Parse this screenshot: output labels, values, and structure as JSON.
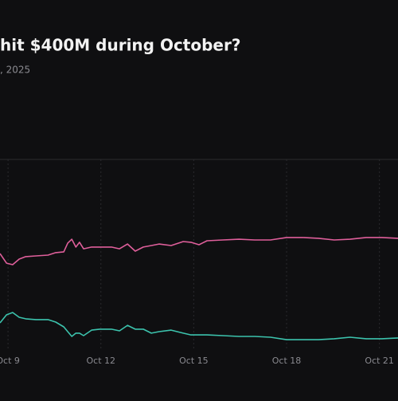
{
  "chart_data": {
    "type": "line",
    "title": "hit $400M during October?",
    "subtitle": ", 2025",
    "x": [
      8.74,
      8.95,
      9.15,
      9.36,
      9.57,
      9.9,
      10.29,
      10.54,
      10.8,
      10.93,
      11.06,
      11.19,
      11.31,
      11.44,
      11.7,
      11.96,
      12.34,
      12.6,
      12.86,
      13.11,
      13.37,
      13.63,
      13.88,
      14.27,
      14.66,
      14.91,
      15.17,
      15.43,
      15.94,
      16.46,
      16.97,
      17.48,
      18.0,
      18.51,
      19.03,
      19.54,
      20.05,
      20.57,
      21.08,
      21.6
    ],
    "series": [
      {
        "color": "#df5f9b",
        "values": [
          50.8,
          45.8,
          45.0,
          47.9,
          49.2,
          49.6,
          50.0,
          51.3,
          51.7,
          56.3,
          58.3,
          54.2,
          56.7,
          53.3,
          54.2,
          54.2,
          54.2,
          53.3,
          55.8,
          52.1,
          54.2,
          55.0,
          55.8,
          55.0,
          57.1,
          56.7,
          55.4,
          57.5,
          57.9,
          58.3,
          57.9,
          57.9,
          59.2,
          59.2,
          58.8,
          57.9,
          58.3,
          59.2,
          59.2,
          58.8
        ]
      },
      {
        "color": "#3cc3ad",
        "values": [
          14.6,
          18.8,
          20.0,
          17.5,
          16.7,
          16.3,
          16.3,
          15.0,
          12.5,
          10.0,
          7.5,
          9.2,
          9.2,
          7.9,
          10.8,
          11.3,
          11.3,
          10.4,
          13.3,
          11.3,
          11.3,
          9.2,
          10.0,
          10.8,
          9.2,
          8.3,
          8.3,
          8.3,
          7.9,
          7.5,
          7.5,
          7.1,
          5.8,
          5.8,
          5.8,
          6.3,
          7.1,
          6.3,
          6.3,
          6.7
        ]
      }
    ],
    "xlim": [
      8.74,
      21.6
    ],
    "xticks": [
      {
        "value": 9,
        "label": "Oct 9"
      },
      {
        "value": 12,
        "label": "Oct 12"
      },
      {
        "value": 15,
        "label": "Oct 15"
      },
      {
        "value": 18,
        "label": "Oct 18"
      },
      {
        "value": 21,
        "label": "Oct 21"
      }
    ],
    "ylim": [
      0,
      100
    ],
    "grid": true
  }
}
